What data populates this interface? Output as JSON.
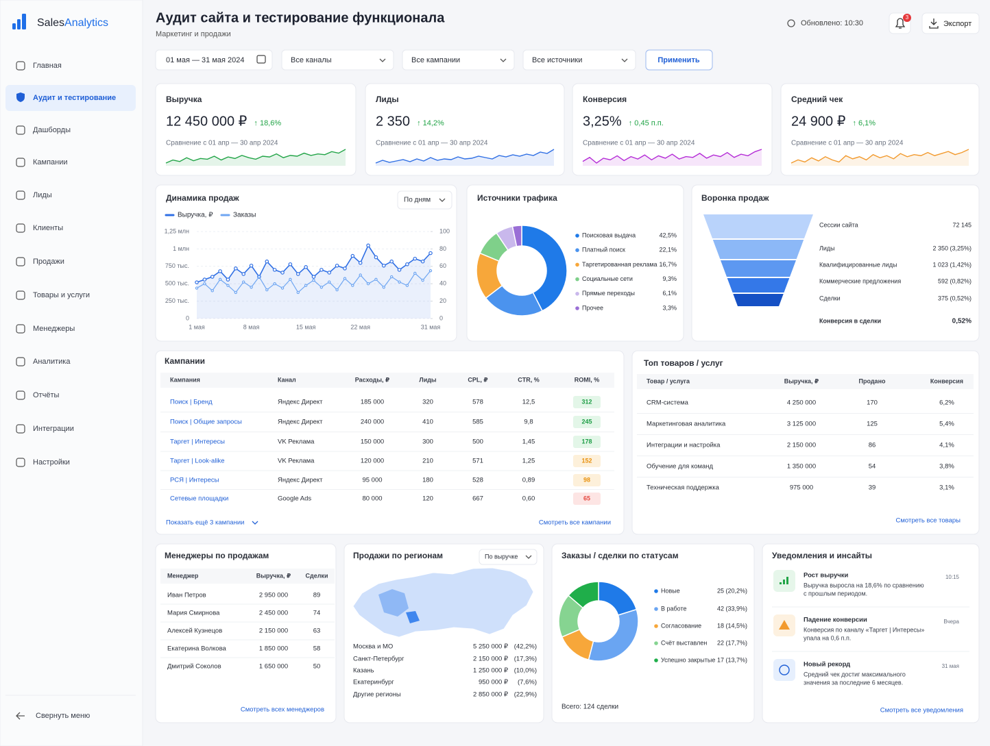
{
  "brand": {
    "part1": "Sales",
    "part2": "Analytics"
  },
  "nav": [
    "Главная",
    "Аудит и тестирование",
    "Дашборды",
    "Кампании",
    "Лиды",
    "Клиенты",
    "Продажи",
    "Товары и услуги",
    "Менеджеры",
    "Аналитика",
    "Отчёты",
    "Интеграции",
    "Настройки"
  ],
  "nav_active": 1,
  "collapse": "Свернуть меню",
  "header": {
    "title": "Аудит сайта и тестирование функционала",
    "subtitle": "Маркетинг и продажи",
    "updated": "Обновлено: 10:30",
    "notifications": 3,
    "export": "Экспорт"
  },
  "filters": {
    "date": "01 мая — 31 мая 2024",
    "channels": "Все каналы",
    "campaigns": "Все кампании",
    "sources": "Все источники",
    "apply": "Применить"
  },
  "kpis": [
    {
      "title": "Выручка",
      "value": "12 450 000 ₽",
      "delta": "↑ 18,6%",
      "compare": "Сравнение с 01 апр — 30 апр 2024",
      "color": "#22a447",
      "spark": [
        40,
        44,
        42,
        47,
        43,
        46,
        45,
        49,
        44,
        48,
        46,
        50,
        47,
        45,
        49,
        48,
        52,
        47,
        50,
        49,
        53,
        50,
        52,
        51,
        55,
        53,
        58
      ]
    },
    {
      "title": "Лиды",
      "value": "2 350",
      "delta": "↑ 14,2%",
      "compare": "Сравнение с 01 апр — 30 апр 2024",
      "color": "#2f6fe4",
      "spark": [
        30,
        34,
        31,
        33,
        35,
        32,
        36,
        33,
        38,
        34,
        36,
        35,
        39,
        36,
        37,
        40,
        38,
        36,
        41,
        39,
        42,
        40,
        43,
        41,
        46,
        44,
        50
      ]
    },
    {
      "title": "Конверсия",
      "value": "3,25%",
      "delta": "↑ 0,45 п.п.",
      "compare": "Сравнение с 01 апр — 30 апр 2024",
      "color": "#b42bd6",
      "spark": [
        40,
        45,
        38,
        44,
        42,
        47,
        41,
        46,
        43,
        48,
        42,
        47,
        44,
        49,
        43,
        46,
        45,
        50,
        44,
        48,
        46,
        51,
        45,
        49,
        47,
        52,
        55
      ]
    },
    {
      "title": "Средний чек",
      "value": "24 900 ₽",
      "delta": "↑ 6,1%",
      "compare": "Сравнение с 01 апр — 30 апр 2024",
      "color": "#f29a2e",
      "spark": [
        35,
        38,
        36,
        40,
        37,
        41,
        38,
        36,
        42,
        39,
        41,
        38,
        43,
        40,
        42,
        39,
        44,
        41,
        43,
        42,
        45,
        42,
        44,
        46,
        43,
        45,
        48
      ]
    }
  ],
  "sales_chart": {
    "type": "line",
    "title": "Динамика продаж",
    "period": "По дням",
    "categories": [
      "1 мая",
      null,
      null,
      null,
      null,
      null,
      null,
      "8 мая",
      null,
      null,
      null,
      null,
      null,
      null,
      "15 мая",
      null,
      null,
      null,
      null,
      null,
      null,
      "22 мая",
      null,
      null,
      null,
      null,
      null,
      null,
      null,
      null,
      "31 мая"
    ],
    "series": [
      {
        "name": "Выручка, ₽",
        "color": "#2f6fe4",
        "values": [
          520000,
          560000,
          600000,
          680000,
          560000,
          720000,
          640000,
          760000,
          600000,
          820000,
          700000,
          660000,
          780000,
          640000,
          740000,
          600000,
          700000,
          660000,
          760000,
          720000,
          900000,
          800000,
          1050000,
          880000,
          760000,
          820000,
          700000,
          780000,
          860000,
          820000,
          940000
        ]
      },
      {
        "name": "Заказы",
        "color": "#6fa6f2",
        "axis": "y2",
        "values": [
          35,
          40,
          32,
          45,
          38,
          30,
          42,
          36,
          48,
          33,
          40,
          35,
          45,
          30,
          38,
          44,
          36,
          42,
          33,
          46,
          38,
          50,
          40,
          45,
          36,
          48,
          42,
          38,
          52,
          44,
          55
        ]
      }
    ],
    "ylim": [
      0,
      1250000
    ],
    "yticks": [
      0,
      {
        "value": 250000,
        "label": "250 тыс."
      },
      {
        "value": 500000,
        "label": "500 тыс."
      },
      {
        "value": 750000,
        "label": "750 тыс."
      },
      {
        "value": 1000000,
        "label": "1 млн"
      },
      {
        "value": 1250000,
        "label": "1,25 млн"
      }
    ],
    "y2lim": [
      0,
      100
    ],
    "y2ticks": [
      0,
      20,
      40,
      60,
      80,
      100
    ],
    "grid": true
  },
  "traffic": {
    "type": "donut",
    "title": "Источники трафика",
    "categories": [
      "Поисковая выдача",
      "Платный поиск",
      "Таргетированная реклама",
      "Социальные сети",
      "Прямые переходы",
      "Прочее"
    ],
    "values": [
      42.5,
      22.1,
      16.7,
      9.3,
      6.1,
      3.3
    ],
    "value_labels": [
      "42,5%",
      "22,1%",
      "16,7%",
      "9,3%",
      "6,1%",
      "3,3%"
    ],
    "colors": [
      "#1f7ae8",
      "#4b93ee",
      "#f7a73a",
      "#7fd08a",
      "#c9b8ec",
      "#9a6fd6"
    ]
  },
  "funnel": {
    "title": "Воронка продаж",
    "stages": [
      {
        "label": "Сессии сайта",
        "value": "72 145"
      },
      {
        "label": "Лиды",
        "value": "2 350 (3,25%)"
      },
      {
        "label": "Квалифицированные лиды",
        "value": "1 023 (1,42%)"
      },
      {
        "label": "Коммерческие предложения",
        "value": "592 (0,82%)"
      },
      {
        "label": "Сделки",
        "value": "375 (0,52%)"
      }
    ],
    "total": {
      "label": "Конверсия в сделки",
      "value": "0,52%"
    }
  },
  "campaigns": {
    "title": "Кампании",
    "columns": [
      "Кампания",
      "Канал",
      "Расходы, ₽",
      "Лиды",
      "CPL, ₽",
      "CTR, %",
      "ROMI, %"
    ],
    "rows": [
      [
        "Поиск | Бренд",
        "Яндекс Директ",
        "185 000",
        "320",
        "578",
        "12,5",
        "312"
      ],
      [
        "Поиск | Общие запросы",
        "Яндекс Директ",
        "240 000",
        "410",
        "585",
        "9,8",
        "245"
      ],
      [
        "Таргет | Интересы",
        "VK Реклама",
        "150 000",
        "300",
        "500",
        "1,45",
        "178"
      ],
      [
        "Таргет | Look-alike",
        "VK Реклама",
        "120 000",
        "210",
        "571",
        "1,25",
        "152"
      ],
      [
        "РСЯ | Интересы",
        "Яндекс Директ",
        "95 000",
        "180",
        "528",
        "0,89",
        "98"
      ],
      [
        "Сетевые площадки",
        "Google Ads",
        "80 000",
        "120",
        "667",
        "0,60",
        "65"
      ]
    ],
    "badges": [
      "good",
      "good",
      "good",
      "mid",
      "mid",
      "bad"
    ],
    "more": "Показать ещё 3 кампании",
    "all": "Смотреть все кампании"
  },
  "products": {
    "title": "Топ товаров / услуг",
    "columns": [
      "Товар / услуга",
      "Выручка, ₽",
      "Продано",
      "Конверсия"
    ],
    "rows": [
      [
        "CRM-система",
        "4 250 000",
        "170",
        "6,2%"
      ],
      [
        "Маркетинговая аналитика",
        "3 125 000",
        "125",
        "5,4%"
      ],
      [
        "Интеграции и настройка",
        "2 150 000",
        "86",
        "4,1%"
      ],
      [
        "Обучение для команд",
        "1 350 000",
        "54",
        "3,8%"
      ],
      [
        "Техническая поддержка",
        "975 000",
        "39",
        "3,1%"
      ]
    ],
    "all": "Смотреть все товары"
  },
  "managers": {
    "title": "Менеджеры по продажам",
    "columns": [
      "Менеджер",
      "Выручка, ₽",
      "Сделки"
    ],
    "rows": [
      [
        "Иван Петров",
        "2 950 000",
        "89"
      ],
      [
        "Мария Смирнова",
        "2 450 000",
        "74"
      ],
      [
        "Алексей Кузнецов",
        "2 150 000",
        "63"
      ],
      [
        "Екатерина Волкова",
        "1 850 000",
        "58"
      ],
      [
        "Дмитрий Соколов",
        "1 650 000",
        "50"
      ]
    ],
    "all": "Смотреть всех менеджеров"
  },
  "regions": {
    "title": "Продажи по регионам",
    "sort": "По выручке",
    "rows": [
      [
        "Москва и МО",
        "5 250 000 ₽",
        "(42,2%)"
      ],
      [
        "Санкт-Петербург",
        "2 150 000 ₽",
        "(17,3%)"
      ],
      [
        "Казань",
        "1 250 000 ₽",
        "(10,0%)"
      ],
      [
        "Екатеринбург",
        "950 000 ₽",
        "(7,6%)"
      ],
      [
        "Другие регионы",
        "2 850 000 ₽",
        "(22,9%)"
      ]
    ]
  },
  "statuses": {
    "type": "donut",
    "title": "Заказы / сделки по статусам",
    "categories": [
      "Новые",
      "В работе",
      "Согласование",
      "Счёт выставлен",
      "Успешно закрытые"
    ],
    "values": [
      25,
      42,
      18,
      22,
      17
    ],
    "value_labels": [
      "25 (20,2%)",
      "42 (33,9%)",
      "18 (14,5%)",
      "22 (17,7%)",
      "17 (13,7%)"
    ],
    "colors": [
      "#1f7ae8",
      "#6aa5f2",
      "#f7a73a",
      "#86d491",
      "#1fae4a"
    ],
    "total": "Всего: 124 сделки"
  },
  "notifications": {
    "title": "Уведомления и инсайты",
    "items": [
      {
        "title": "Рост выручки",
        "text": [
          "Выручка выросла на 18,6% по сравнению",
          "с прошлым периодом."
        ],
        "time": "10:15"
      },
      {
        "title": "Падение конверсии",
        "text": [
          "Конверсия по каналу «Таргет | Интересы»",
          "упала на 0,6 п.п."
        ],
        "time": "Вчера"
      },
      {
        "title": "Новый рекорд",
        "text": [
          "Средний чек достиг максимального",
          "значения за последние 6 месяцев."
        ],
        "time": "31 мая"
      }
    ],
    "all": "Смотреть все уведомления"
  }
}
